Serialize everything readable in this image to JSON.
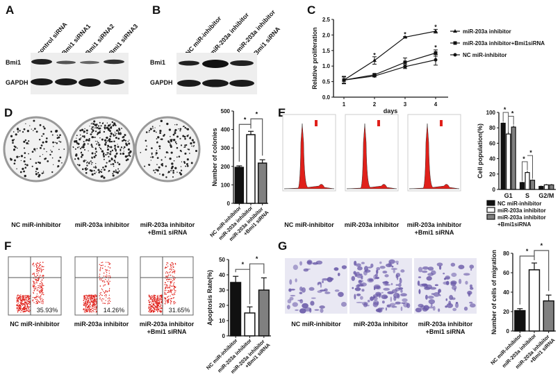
{
  "panels": {
    "A": {
      "label": "A",
      "lanes": [
        "control siRNA",
        "Bmi1 siRNA1",
        "Bmi1 siRNA2",
        "Bmi1 siRNA3"
      ],
      "rows": [
        "Bmi1",
        "GAPDH"
      ]
    },
    "B": {
      "label": "B",
      "lanes": [
        "NC miR-inhibitor",
        "miR-203a inhibitor",
        "miR-203a inhibitor",
        "+ Bmi1 siRNA"
      ],
      "rows": [
        "Bmi1",
        "GAPDH"
      ]
    },
    "C": {
      "label": "C"
    },
    "D": {
      "label": "D",
      "images": [
        "NC miR-inhibitor",
        "miR-203a inhibitor",
        "miR-203a inhibitor",
        "+Bmi1 siRNA"
      ]
    },
    "E": {
      "label": "E",
      "images": [
        "NC miR-inhibitor",
        "miR-203a inhibitor",
        "miR-203a inhibitor",
        "+Bmi1 siRNA"
      ]
    },
    "F": {
      "label": "F",
      "images": [
        "NC miR-inhibitor",
        "miR-203a inhibitor",
        "miR-203a inhibitor",
        "+Bmi1 siRNA"
      ],
      "quadrant_values": [
        "35.93%",
        "14.26%",
        "31.65%"
      ]
    },
    "G": {
      "label": "G",
      "images": [
        "NC miR-inhibitor",
        "miR-203a inhibitor",
        "miR-203a inhibitor",
        "+Bmi1 siRNA"
      ]
    }
  },
  "colors": {
    "black": "#111111",
    "white": "#ffffff",
    "gray": "#808080",
    "flow_red": "#e0201a",
    "stain_purple": "#6a5aa8"
  },
  "chart_data": [
    {
      "id": "C",
      "type": "line",
      "xlabel": "days",
      "ylabel": "Relative proliferation",
      "x": [
        1,
        2,
        3,
        4
      ],
      "ylim": [
        0,
        2.5
      ],
      "yticks": [
        "0.0",
        "0.5",
        "1.0",
        "1.5",
        "2.0",
        "2.5"
      ],
      "legend": "right",
      "series": [
        {
          "name": "miR-203a inhibitor",
          "marker": "triangle",
          "values": [
            0.55,
            1.18,
            1.93,
            2.12
          ],
          "errors": [
            0.12,
            0.12,
            0.02,
            0.06
          ]
        },
        {
          "name": "miR-203a inhibitor+Bmi1siRNA",
          "marker": "square",
          "values": [
            0.55,
            0.72,
            1.12,
            1.42
          ],
          "errors": [
            0.1,
            0.03,
            0.14,
            0.1
          ]
        },
        {
          "name": "NC miR-inhibitor",
          "marker": "circle",
          "values": [
            0.55,
            0.68,
            0.98,
            1.2
          ],
          "errors": [
            0.1,
            0.03,
            0.06,
            0.17
          ]
        }
      ],
      "significance": [
        "*",
        "*",
        "*",
        "*"
      ]
    },
    {
      "id": "D",
      "type": "bar",
      "ylabel": "Number of colonies",
      "ylim": [
        0,
        500
      ],
      "yticks": [
        "0",
        "100",
        "200",
        "300",
        "400",
        "500"
      ],
      "categories": [
        "NC miR-inhibitor",
        "miR-203a inhibitor",
        "miR-203a inhibitor +Bmi1 siRNA"
      ],
      "values": [
        195,
        372,
        218
      ],
      "errors": [
        8,
        18,
        18
      ],
      "significance": [
        "*",
        "*"
      ]
    },
    {
      "id": "E",
      "type": "bar",
      "ylabel": "Cell population(%)",
      "ylim": [
        0,
        100
      ],
      "yticks": [
        "0",
        "20",
        "40",
        "60",
        "80",
        "100"
      ],
      "categories": [
        "G1",
        "S",
        "G2/M"
      ],
      "legend": "bottom",
      "series": [
        {
          "name": "NC miR-inhibitor",
          "values": [
            86,
            9,
            4
          ],
          "errors": [
            1,
            1,
            1
          ]
        },
        {
          "name": "miR-203a inhibitor",
          "values": [
            72,
            22,
            6
          ],
          "errors": [
            3,
            2,
            1
          ]
        },
        {
          "name": "miR-203a inhibitor +Bmi1siRNA",
          "values": [
            81,
            12,
            6
          ],
          "errors": [
            2,
            1,
            1
          ]
        }
      ],
      "significance": [
        "*",
        "*",
        "*",
        "*"
      ]
    },
    {
      "id": "F",
      "type": "bar",
      "ylabel": "Apoptosis Rate(%)",
      "ylim": [
        0,
        50
      ],
      "yticks": [
        "0",
        "10",
        "20",
        "30",
        "40",
        "50"
      ],
      "categories": [
        "NC miR-inhibitor",
        "miR-203a inhibitor",
        "miR-203a inhibitor +Bmi1 siRNA"
      ],
      "values": [
        35,
        15,
        30
      ],
      "errors": [
        4,
        4,
        8
      ],
      "significance": [
        "*",
        "*"
      ]
    },
    {
      "id": "G",
      "type": "bar",
      "ylabel": "Number of cells of migration",
      "ylim": [
        0,
        80
      ],
      "yticks": [
        "0",
        "20",
        "40",
        "60",
        "80"
      ],
      "categories": [
        "NC miR-inhibitor",
        "miR-203a inhibitor",
        "miR-203a inhibitor +Bmi1 siRNA"
      ],
      "values": [
        21,
        63,
        31
      ],
      "errors": [
        2,
        7,
        6
      ],
      "significance": [
        "*",
        "*"
      ]
    }
  ]
}
